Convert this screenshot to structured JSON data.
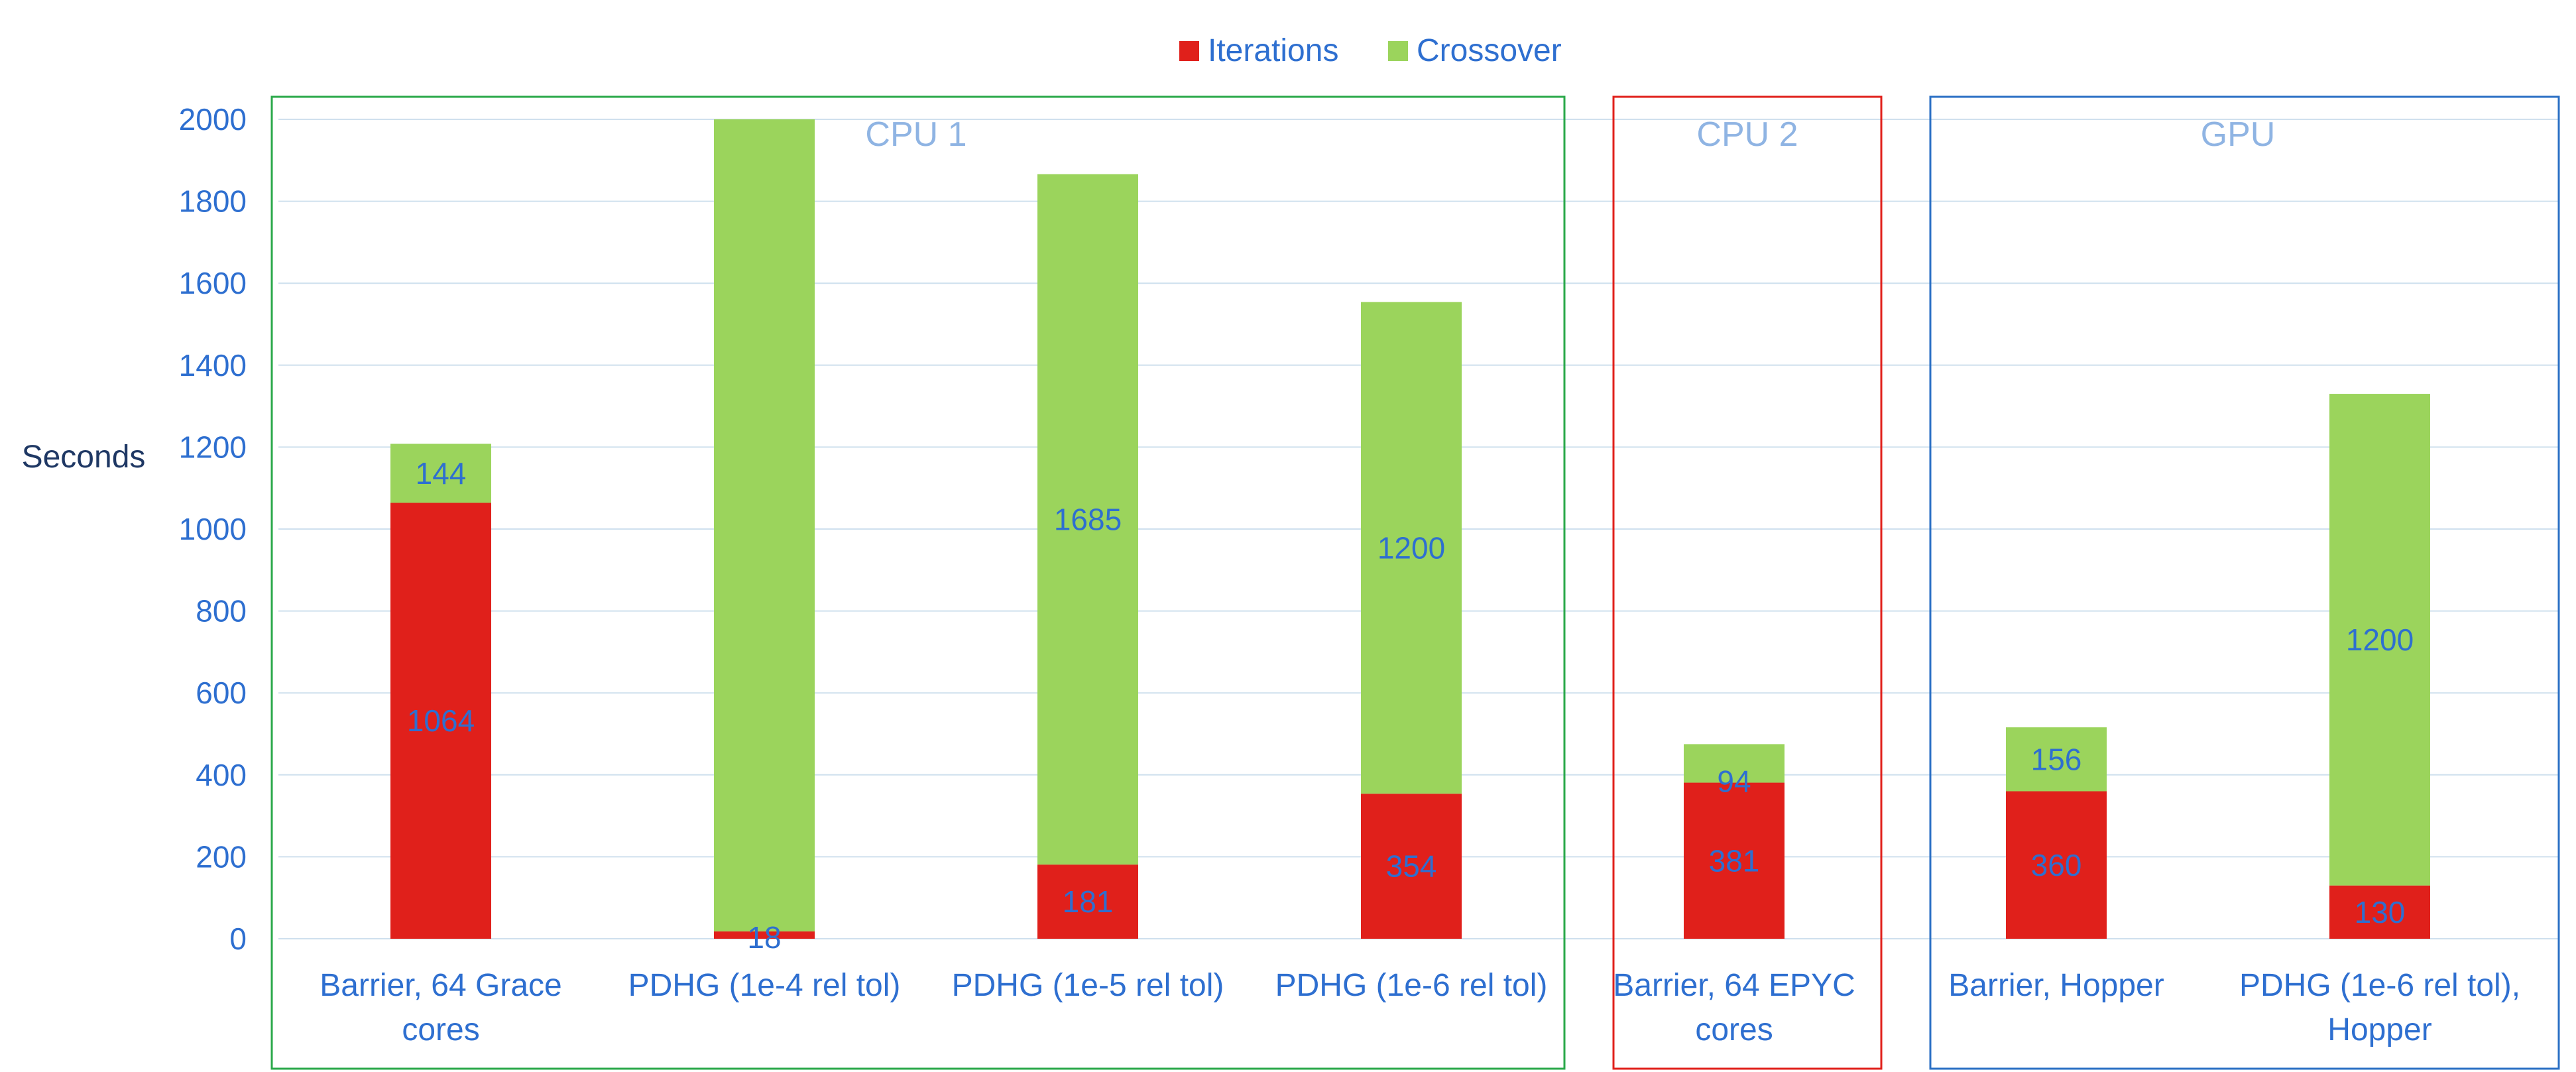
{
  "chart_data": {
    "type": "bar",
    "stacked": true,
    "ylabel": "Seconds",
    "ylim": [
      0,
      2000
    ],
    "yticks": [
      0,
      200,
      400,
      600,
      800,
      1000,
      1200,
      1400,
      1600,
      1800,
      2000
    ],
    "categories": [
      [
        "Barrier, 64 Grace",
        "cores"
      ],
      [
        "PDHG (1e-4 rel tol)"
      ],
      [
        "PDHG (1e-5 rel tol)"
      ],
      [
        "PDHG (1e-6 rel tol)"
      ],
      [
        "Barrier, 64 EPYC",
        "cores"
      ],
      [
        "Barrier, Hopper"
      ],
      [
        "PDHG (1e-6 rel tol),",
        "Hopper"
      ]
    ],
    "series": [
      {
        "name": "Iterations",
        "color": "#e0201b",
        "values": [
          1064,
          18,
          181,
          354,
          381,
          360,
          130
        ]
      },
      {
        "name": "Crossover",
        "color": "#9bd45c",
        "values": [
          144,
          1982,
          1685,
          1200,
          94,
          156,
          1200
        ]
      }
    ],
    "segment_labels": [
      [
        "1064",
        "18",
        "181",
        "354",
        "381",
        "360",
        "130"
      ],
      [
        "144",
        "",
        "1685",
        "1200",
        "94",
        "156",
        "1200"
      ]
    ],
    "groups": [
      {
        "title": "CPU 1",
        "color": "#2aa84a",
        "categories": [
          0,
          1,
          2,
          3
        ]
      },
      {
        "title": "CPU 2",
        "color": "#e0201b",
        "categories": [
          4
        ]
      },
      {
        "title": "GPU",
        "color": "#2a6fc4",
        "categories": [
          5,
          6
        ]
      }
    ],
    "legend_position": "top-center",
    "grid": true,
    "colors": {
      "tick_text": "#2e6fd0",
      "ylabel_text": "#1f3864",
      "data_label_text": "#2e6fd0",
      "group_title_text": "#8fb4e3",
      "gridline": "#cfe0ee"
    }
  }
}
